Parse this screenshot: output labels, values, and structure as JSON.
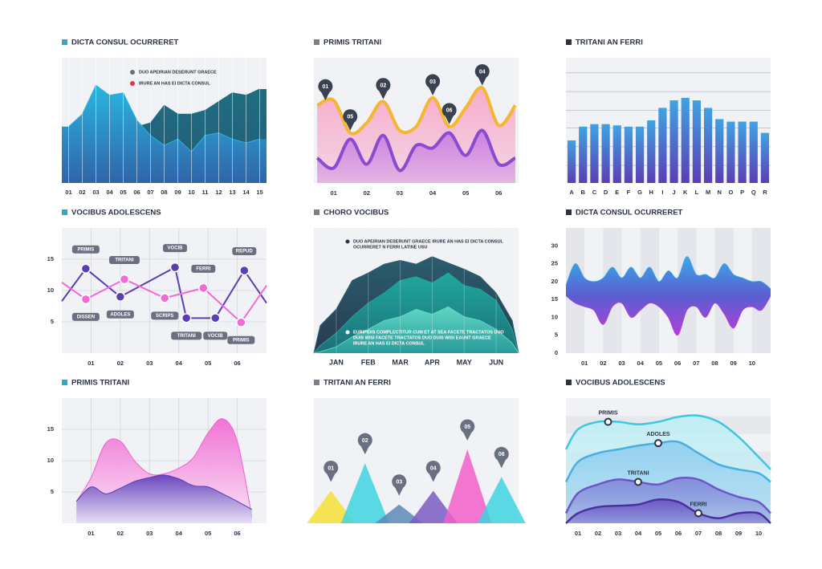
{
  "chart_data": [
    {
      "type": "area",
      "title": "DICTA CONSUL OCURRERET",
      "title_marker_color": "#2aa8d8",
      "categories": [
        "01",
        "02",
        "03",
        "04",
        "05",
        "06",
        "07",
        "08",
        "09",
        "10",
        "11",
        "12",
        "13",
        "14",
        "15"
      ],
      "ylim": [
        0,
        100
      ],
      "smooth": false,
      "series": [
        {
          "name": "DUO APEIRIAN DESERUNT GRAECE",
          "color": "#1f6e80",
          "color_bottom": "#245a78",
          "legend_color": "#6b7080",
          "values": [
            40,
            50,
            60,
            60,
            60,
            45,
            48,
            62,
            55,
            55,
            58,
            65,
            72,
            70,
            75
          ]
        },
        {
          "name": "IRURE AN HAS EI DICTA CONSUL",
          "color": "#2ab5e0",
          "color_bottom": "#2f64a8",
          "legend_color": "#e8344e",
          "values": [
            45,
            55,
            78,
            70,
            72,
            50,
            38,
            30,
            35,
            25,
            38,
            40,
            35,
            32,
            35
          ]
        }
      ]
    },
    {
      "type": "line",
      "title": "PRIMIS TRITANI",
      "title_marker_color": "#7a7f8c",
      "x": [
        0.5,
        1,
        1.5,
        2,
        2.5,
        3,
        3.5,
        4,
        4.5,
        5,
        5.5,
        6,
        6.5
      ],
      "xlim": [
        0.4,
        6.6
      ],
      "ylim": [
        0,
        100
      ],
      "xticks": [
        {
          "value": 1,
          "label": "01"
        },
        {
          "value": 2,
          "label": "02"
        },
        {
          "value": 3,
          "label": "03"
        },
        {
          "value": 4,
          "label": "04"
        },
        {
          "value": 5,
          "label": "05"
        },
        {
          "value": 6,
          "label": "06"
        }
      ],
      "smooth": true,
      "fill": true,
      "line_width": 4,
      "pin_color": "#3a4252",
      "series": [
        {
          "color": "#f5b731",
          "fill_color": "#f7a3c6",
          "values": [
            62,
            66,
            40,
            48,
            65,
            42,
            45,
            68,
            45,
            60,
            76,
            46,
            62
          ]
        },
        {
          "color": "#8a4bd0",
          "fill_color": "#c77be3",
          "values": [
            20,
            12,
            35,
            15,
            38,
            10,
            30,
            28,
            40,
            22,
            42,
            15,
            20
          ]
        }
      ],
      "pins": [
        {
          "label": "01",
          "x": 0.75,
          "y": 64
        },
        {
          "label": "02",
          "x": 2.5,
          "y": 65
        },
        {
          "label": "03",
          "x": 4,
          "y": 68
        },
        {
          "label": "04",
          "x": 5.5,
          "y": 76
        },
        {
          "label": "05",
          "x": 1.5,
          "y": 40
        },
        {
          "label": "06",
          "x": 4.5,
          "y": 45
        }
      ]
    },
    {
      "type": "bar",
      "title": "TRITANI AN FERRI",
      "title_marker_color": "#2b3444",
      "categories": [
        "A",
        "B",
        "C",
        "D",
        "E",
        "F",
        "G",
        "H",
        "I",
        "J",
        "K",
        "L",
        "M",
        "N",
        "O",
        "P",
        "Q",
        "R"
      ],
      "values": [
        34,
        45,
        47,
        47,
        46,
        45,
        45,
        50,
        60,
        66,
        68,
        66,
        60,
        51,
        49,
        49,
        49,
        40
      ],
      "ylim": [
        0,
        100
      ],
      "ygrid": [
        14,
        29,
        44,
        58,
        73,
        88
      ],
      "color": "#3fa3e2",
      "color_bottom": "#5c3db5"
    },
    {
      "type": "line",
      "title": "VOCIBUS ADOLESCENS",
      "title_marker_color": "#2aa8d8",
      "xlim": [
        0,
        7
      ],
      "ylim": [
        0,
        20
      ],
      "yticks": [
        5,
        10,
        15
      ],
      "xticks": [
        {
          "value": 1,
          "label": "01"
        },
        {
          "value": 2,
          "label": "02"
        },
        {
          "value": 3,
          "label": "03"
        },
        {
          "value": 4,
          "label": "04"
        },
        {
          "value": 5,
          "label": "05"
        },
        {
          "value": 6,
          "label": "06"
        }
      ],
      "grid": true,
      "smooth": false,
      "markers": true,
      "line_width": 2,
      "series": [
        {
          "color": "#5b3fb0",
          "x": [
            0,
            0.82,
            2,
            3.87,
            4.26,
            5.25,
            6.24,
            7
          ],
          "values": [
            8.3,
            13.5,
            9,
            13.7,
            5.6,
            5.6,
            13.2,
            8
          ],
          "point_labels": [
            null,
            "PRIMIS",
            "ADOLES",
            "VOCIB",
            "TRITANI",
            "VOCIB",
            "REPUD",
            null
          ]
        },
        {
          "color": "#f06ad8",
          "x": [
            0,
            0.82,
            2.14,
            3.52,
            4.84,
            6.13,
            7
          ],
          "values": [
            11.3,
            8.6,
            11.8,
            8.8,
            10.4,
            4.9,
            10.8
          ],
          "point_labels": [
            null,
            "DISSEN",
            "TRITANI",
            "SCRIPS",
            "FERRI",
            "PRIMIS",
            null
          ]
        }
      ]
    },
    {
      "type": "area",
      "title": "CHORO VOCIBUS",
      "title_marker_color": "#7a7f8c",
      "categories": [
        "JAN",
        "FEB",
        "MAR",
        "APR",
        "MAY",
        "JUN"
      ],
      "x": [
        -0.7,
        -0.5,
        0,
        0.5,
        1,
        1.5,
        2,
        2.5,
        3,
        3.5,
        4,
        4.5,
        5,
        5.5,
        5.7
      ],
      "xlim": [
        -0.7,
        5.7
      ],
      "ylim": [
        0,
        100
      ],
      "smooth": false,
      "series": [
        {
          "color": "#2a5d6e",
          "color_bottom": "#2a3a50",
          "values": [
            0,
            22,
            35,
            58,
            64,
            71,
            74,
            71,
            77,
            72,
            67,
            61,
            48,
            26,
            0
          ]
        },
        {
          "color": "#1fa89e",
          "color_bottom": "#1d6f78",
          "values": [
            0,
            6,
            16,
            29,
            40,
            48,
            58,
            61,
            56,
            64,
            54,
            51,
            42,
            19,
            0
          ]
        },
        {
          "color": "#5fd6c4",
          "color_bottom": "#2a9a9a",
          "values": [
            0,
            1,
            5,
            13,
            19,
            26,
            29,
            35,
            31,
            37,
            29,
            26,
            19,
            8,
            0
          ]
        }
      ],
      "notes": [
        [
          "DUO APEIRIAN DESERUNT GRAECE IRURE AN HAS EI DICTA CONSUL",
          "OCURRERET N FERRI LATINE USU"
        ],
        [
          "EURIPIDIS COMPLECTITUR CUM ET AT SEA FACETE TRACTATOS DUO",
          "DUIS WISI FACETE TRACTATOS DUO DUIS WISI EAUNT GRAECE",
          "IRURE AN HAS EI DICTA CONSUL"
        ]
      ],
      "note_colors": [
        "#2b3444",
        "#ffffff"
      ]
    },
    {
      "type": "ribbon",
      "title": "DICTA CONSUL OCURRERET",
      "title_marker_color": "#2b3444",
      "x": [
        0,
        0.5,
        1,
        1.5,
        2,
        2.5,
        3,
        3.5,
        4,
        4.5,
        5,
        5.5,
        6,
        6.5,
        7,
        7.5,
        8,
        8.5,
        9,
        9.5,
        10,
        10.5,
        11
      ],
      "xlim": [
        0,
        11
      ],
      "ylim": [
        0,
        35
      ],
      "yticks": [
        0,
        5,
        10,
        15,
        20,
        25,
        30
      ],
      "xticks": [
        {
          "value": 1,
          "label": "01"
        },
        {
          "value": 2,
          "label": "02"
        },
        {
          "value": 3,
          "label": "03"
        },
        {
          "value": 4,
          "label": "04"
        },
        {
          "value": 5,
          "label": "05"
        },
        {
          "value": 6,
          "label": "06"
        },
        {
          "value": 7,
          "label": "07"
        },
        {
          "value": 8,
          "label": "08"
        },
        {
          "value": 9,
          "label": "09"
        },
        {
          "value": 10,
          "label": "10"
        }
      ],
      "series": [
        {
          "color": "#3ba8e8",
          "values": [
            19,
            25,
            21,
            20,
            21,
            24,
            21,
            24,
            21,
            24,
            20,
            23,
            21,
            27,
            22,
            22,
            21,
            25,
            22,
            21,
            20,
            20,
            18
          ]
        },
        {
          "color": "#b040d8",
          "values": [
            16,
            14,
            13,
            12,
            8,
            13,
            14,
            10,
            12,
            14,
            13,
            10,
            5,
            12,
            13,
            10,
            14,
            11,
            7,
            12,
            13,
            12,
            16
          ]
        }
      ]
    },
    {
      "type": "area",
      "title": "PRIMIS TRITANI",
      "title_marker_color": "#2aa8d8",
      "x": [
        0.5,
        1,
        1.5,
        2,
        2.5,
        3,
        3.5,
        4,
        4.5,
        5,
        5.5,
        6,
        6.5
      ],
      "xlim": [
        0,
        7
      ],
      "ylim": [
        0,
        20
      ],
      "yticks": [
        5,
        10,
        15
      ],
      "xticks": [
        {
          "value": 1,
          "label": "01"
        },
        {
          "value": 2,
          "label": "02"
        },
        {
          "value": 3,
          "label": "03"
        },
        {
          "value": 4,
          "label": "04"
        },
        {
          "value": 5,
          "label": "05"
        },
        {
          "value": 6,
          "label": "06"
        }
      ],
      "grid": true,
      "smooth": true,
      "series": [
        {
          "color": "#f065d2",
          "color_bottom": "#fbe3f6",
          "values": [
            3.5,
            7.3,
            12.8,
            13.1,
            9.9,
            7.9,
            7.9,
            8.8,
            10.5,
            14.4,
            16.7,
            13.1,
            1
          ]
        },
        {
          "color": "#5a3cb8",
          "color_bottom": "#e6def5",
          "values": [
            3.5,
            5.8,
            4.7,
            5.6,
            6.7,
            7.3,
            7.7,
            7.1,
            6,
            5.8,
            4.7,
            3.5,
            2.2
          ]
        }
      ]
    },
    {
      "type": "peak",
      "title": "TRITANI AN FERRI",
      "title_marker_color": "#7a7f8c",
      "categories": [
        "01",
        "02",
        "03",
        "04",
        "05",
        "06"
      ],
      "values": [
        26,
        48,
        15,
        26,
        59,
        37
      ],
      "ylim": [
        0,
        100
      ],
      "colors": [
        "#f5e135",
        "#3fd3e0",
        "#5a8ab8",
        "#7b5cc4",
        "#f25fc8",
        "#3fd3e0"
      ],
      "pin_color": "#6b7080"
    },
    {
      "type": "line",
      "title": "VOCIBUS ADOLESCENS",
      "title_marker_color": "#2b3444",
      "x": [
        0.4,
        1,
        2,
        3,
        4,
        5,
        6,
        7,
        8,
        9,
        10,
        10.6
      ],
      "xlim": [
        0.4,
        10.6
      ],
      "ylim": [
        0,
        100
      ],
      "xticks": [
        {
          "value": 1,
          "label": "01"
        },
        {
          "value": 2,
          "label": "02"
        },
        {
          "value": 3,
          "label": "03"
        },
        {
          "value": 4,
          "label": "04"
        },
        {
          "value": 5,
          "label": "05"
        },
        {
          "value": 6,
          "label": "06"
        },
        {
          "value": 7,
          "label": "07"
        },
        {
          "value": 8,
          "label": "08"
        },
        {
          "value": 9,
          "label": "09"
        },
        {
          "value": 10,
          "label": "10"
        }
      ],
      "smooth": true,
      "fill": true,
      "line_width": 2.5,
      "series": [
        {
          "color": "#3cc8e0",
          "fill_color": "#bdeef5",
          "values": [
            59,
            75,
            81,
            81,
            79,
            81,
            85,
            86,
            81,
            69,
            53,
            43
          ]
        },
        {
          "color": "#48b0e0",
          "fill_color": "#8fcdf0",
          "values": [
            33,
            49,
            56,
            59,
            62,
            64,
            65,
            56,
            47,
            43,
            40,
            33
          ]
        },
        {
          "color": "#6a58c8",
          "fill_color": "#8085d8",
          "values": [
            8,
            24,
            31,
            35,
            33,
            31,
            36,
            35,
            27,
            21,
            17,
            8
          ]
        },
        {
          "color": "#4a2fa0",
          "fill_color": "#6a52c4",
          "values": [
            0,
            8,
            13,
            14,
            15,
            19,
            17,
            8,
            4,
            8,
            8,
            0
          ]
        }
      ],
      "annotations": [
        {
          "label": "PRIMIS",
          "x": 2.5,
          "y": 81
        },
        {
          "label": "ADOLES",
          "x": 5,
          "y": 64
        },
        {
          "label": "TRITANI",
          "x": 4,
          "y": 33
        },
        {
          "label": "FERRI",
          "x": 7,
          "y": 8
        }
      ]
    }
  ]
}
